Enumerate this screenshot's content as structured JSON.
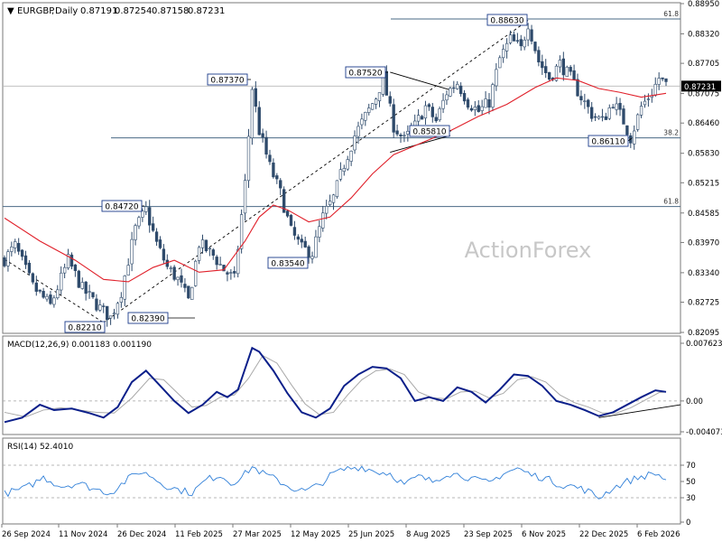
{
  "header": {
    "symbol": "EURGBP",
    "timeframe": "Daily",
    "ohlc": [
      "0.87191",
      "0.87254",
      "0.87158",
      "0.87231"
    ],
    "last_price_label": "0.87231"
  },
  "watermark": "ActionForex",
  "colors": {
    "candle": "#2e4a6b",
    "ma": "#e0202a",
    "macd": "#0b1f8a",
    "macd_signal": "#a8a8a8",
    "rsi": "#2f7fd8",
    "fib_line": "#4a6a85",
    "label_border": "#1a3a8a",
    "price_tag_bg": "#000000"
  },
  "x_axis_labels": [
    "26 Sep 2024",
    "11 Nov 2024",
    "26 Dec 2024",
    "11 Feb 2025",
    "27 Mar 2025",
    "12 May 2025",
    "25 Jun 2025",
    "8 Aug 2025",
    "23 Sep 2025",
    "6 Nov 2025",
    "22 Dec 2025",
    "6 Feb 2026"
  ],
  "chart_data": [
    {
      "type": "candlestick",
      "title": "EURGBP,Daily",
      "ylim": [
        0.82095,
        0.8895
      ],
      "y_ticks": [
        "0.88950",
        "0.88320",
        "0.87705",
        "0.87075",
        "0.86460",
        "0.85830",
        "0.85215",
        "0.84585",
        "0.83970",
        "0.83340",
        "0.82725",
        "0.82095"
      ],
      "fib_levels": [
        {
          "label": "61.8",
          "value": 0.8863
        },
        {
          "label": "38.2",
          "value": 0.8615
        },
        {
          "label": "61.8",
          "value": 0.8472
        }
      ],
      "reference_line": 0.8723,
      "price_labels": [
        "0.88630",
        "0.87370",
        "0.87520",
        "0.84720",
        "0.86110",
        "0.85810",
        "0.83540",
        "0.82210",
        "0.82390"
      ],
      "anchor_points": [
        {
          "x": 0,
          "y": 0.8362
        },
        {
          "x": 3,
          "y": 0.839
        },
        {
          "x": 8,
          "y": 0.8305
        },
        {
          "x": 13,
          "y": 0.8265
        },
        {
          "x": 18,
          "y": 0.836
        },
        {
          "x": 22,
          "y": 0.83
        },
        {
          "x": 27,
          "y": 0.826
        },
        {
          "x": 30,
          "y": 0.824
        },
        {
          "x": 33,
          "y": 0.8295
        },
        {
          "x": 37,
          "y": 0.8425
        },
        {
          "x": 40,
          "y": 0.8465
        },
        {
          "x": 43,
          "y": 0.8395
        },
        {
          "x": 46,
          "y": 0.8345
        },
        {
          "x": 49,
          "y": 0.832
        },
        {
          "x": 52,
          "y": 0.8275
        },
        {
          "x": 55,
          "y": 0.8395
        },
        {
          "x": 59,
          "y": 0.837
        },
        {
          "x": 62,
          "y": 0.834
        },
        {
          "x": 65,
          "y": 0.832
        },
        {
          "x": 68,
          "y": 0.852
        },
        {
          "x": 70,
          "y": 0.872
        },
        {
          "x": 72,
          "y": 0.863
        },
        {
          "x": 75,
          "y": 0.8555
        },
        {
          "x": 78,
          "y": 0.85
        },
        {
          "x": 81,
          "y": 0.842
        },
        {
          "x": 84,
          "y": 0.8385
        },
        {
          "x": 87,
          "y": 0.8375
        },
        {
          "x": 90,
          "y": 0.845
        },
        {
          "x": 93,
          "y": 0.849
        },
        {
          "x": 96,
          "y": 0.856
        },
        {
          "x": 99,
          "y": 0.862
        },
        {
          "x": 102,
          "y": 0.866
        },
        {
          "x": 105,
          "y": 0.87
        },
        {
          "x": 107,
          "y": 0.874
        },
        {
          "x": 110,
          "y": 0.864
        },
        {
          "x": 113,
          "y": 0.861
        },
        {
          "x": 116,
          "y": 0.864
        },
        {
          "x": 119,
          "y": 0.868
        },
        {
          "x": 122,
          "y": 0.865
        },
        {
          "x": 125,
          "y": 0.871
        },
        {
          "x": 128,
          "y": 0.873
        },
        {
          "x": 131,
          "y": 0.869
        },
        {
          "x": 134,
          "y": 0.867
        },
        {
          "x": 137,
          "y": 0.869
        },
        {
          "x": 140,
          "y": 0.878
        },
        {
          "x": 143,
          "y": 0.882
        },
        {
          "x": 146,
          "y": 0.88
        },
        {
          "x": 148,
          "y": 0.8855
        },
        {
          "x": 151,
          "y": 0.8775
        },
        {
          "x": 154,
          "y": 0.874
        },
        {
          "x": 157,
          "y": 0.877
        },
        {
          "x": 160,
          "y": 0.874
        },
        {
          "x": 163,
          "y": 0.87
        },
        {
          "x": 166,
          "y": 0.8665
        },
        {
          "x": 169,
          "y": 0.865
        },
        {
          "x": 172,
          "y": 0.869
        },
        {
          "x": 175,
          "y": 0.865
        },
        {
          "x": 177,
          "y": 0.8615
        },
        {
          "x": 180,
          "y": 0.868
        },
        {
          "x": 183,
          "y": 0.871
        },
        {
          "x": 185,
          "y": 0.874
        },
        {
          "x": 187,
          "y": 0.8725
        }
      ],
      "moving_average": [
        {
          "x": 0,
          "y": 0.8448
        },
        {
          "x": 10,
          "y": 0.84
        },
        {
          "x": 20,
          "y": 0.836
        },
        {
          "x": 28,
          "y": 0.832
        },
        {
          "x": 35,
          "y": 0.8315
        },
        {
          "x": 42,
          "y": 0.8345
        },
        {
          "x": 48,
          "y": 0.836
        },
        {
          "x": 55,
          "y": 0.8335
        },
        {
          "x": 62,
          "y": 0.834
        },
        {
          "x": 68,
          "y": 0.84
        },
        {
          "x": 72,
          "y": 0.845
        },
        {
          "x": 76,
          "y": 0.8475
        },
        {
          "x": 80,
          "y": 0.8465
        },
        {
          "x": 86,
          "y": 0.844
        },
        {
          "x": 92,
          "y": 0.845
        },
        {
          "x": 98,
          "y": 0.849
        },
        {
          "x": 104,
          "y": 0.854
        },
        {
          "x": 110,
          "y": 0.858
        },
        {
          "x": 118,
          "y": 0.8605
        },
        {
          "x": 126,
          "y": 0.863
        },
        {
          "x": 134,
          "y": 0.866
        },
        {
          "x": 142,
          "y": 0.8685
        },
        {
          "x": 150,
          "y": 0.872
        },
        {
          "x": 156,
          "y": 0.874
        },
        {
          "x": 162,
          "y": 0.8735
        },
        {
          "x": 168,
          "y": 0.8718
        },
        {
          "x": 174,
          "y": 0.871
        },
        {
          "x": 180,
          "y": 0.87
        },
        {
          "x": 187,
          "y": 0.8708
        }
      ]
    },
    {
      "type": "line",
      "title": "MACD(12,26,9) 0.001183 0.001190",
      "ylim": [
        -0.004073,
        0.007623
      ],
      "y_ticks": [
        "0.007623",
        "0.00",
        "-0.004073"
      ],
      "macd": [
        {
          "x": 0,
          "y": -0.0028
        },
        {
          "x": 5,
          "y": -0.0022
        },
        {
          "x": 10,
          "y": -0.0005
        },
        {
          "x": 14,
          "y": -0.0012
        },
        {
          "x": 19,
          "y": -0.001
        },
        {
          "x": 24,
          "y": -0.0016
        },
        {
          "x": 28,
          "y": -0.0022
        },
        {
          "x": 32,
          "y": -0.0008
        },
        {
          "x": 36,
          "y": 0.0025
        },
        {
          "x": 40,
          "y": 0.004
        },
        {
          "x": 44,
          "y": 0.002
        },
        {
          "x": 48,
          "y": 0.0
        },
        {
          "x": 52,
          "y": -0.0016
        },
        {
          "x": 56,
          "y": -0.0005
        },
        {
          "x": 60,
          "y": 0.0012
        },
        {
          "x": 63,
          "y": 0.0005
        },
        {
          "x": 66,
          "y": 0.0015
        },
        {
          "x": 70,
          "y": 0.007
        },
        {
          "x": 72,
          "y": 0.0065
        },
        {
          "x": 76,
          "y": 0.004
        },
        {
          "x": 80,
          "y": 0.001
        },
        {
          "x": 84,
          "y": -0.0015
        },
        {
          "x": 88,
          "y": -0.0022
        },
        {
          "x": 92,
          "y": -0.001
        },
        {
          "x": 96,
          "y": 0.002
        },
        {
          "x": 100,
          "y": 0.0035
        },
        {
          "x": 104,
          "y": 0.0045
        },
        {
          "x": 108,
          "y": 0.0043
        },
        {
          "x": 112,
          "y": 0.003
        },
        {
          "x": 116,
          "y": 0.0
        },
        {
          "x": 120,
          "y": 0.0005
        },
        {
          "x": 124,
          "y": 0.0
        },
        {
          "x": 128,
          "y": 0.0018
        },
        {
          "x": 132,
          "y": 0.0012
        },
        {
          "x": 136,
          "y": -0.0002
        },
        {
          "x": 140,
          "y": 0.0015
        },
        {
          "x": 144,
          "y": 0.0035
        },
        {
          "x": 148,
          "y": 0.0033
        },
        {
          "x": 152,
          "y": 0.002
        },
        {
          "x": 156,
          "y": 0.0
        },
        {
          "x": 160,
          "y": -0.0005
        },
        {
          "x": 164,
          "y": -0.0012
        },
        {
          "x": 168,
          "y": -0.002
        },
        {
          "x": 172,
          "y": -0.0015
        },
        {
          "x": 176,
          "y": -0.0005
        },
        {
          "x": 180,
          "y": 0.0005
        },
        {
          "x": 184,
          "y": 0.0014
        },
        {
          "x": 187,
          "y": 0.0012
        }
      ],
      "signal": [
        {
          "x": 0,
          "y": -0.0015
        },
        {
          "x": 6,
          "y": -0.0021
        },
        {
          "x": 11,
          "y": -0.0012
        },
        {
          "x": 16,
          "y": -0.0009
        },
        {
          "x": 21,
          "y": -0.0012
        },
        {
          "x": 26,
          "y": -0.0015
        },
        {
          "x": 31,
          "y": -0.0016
        },
        {
          "x": 36,
          "y": 0.0004
        },
        {
          "x": 41,
          "y": 0.003
        },
        {
          "x": 45,
          "y": 0.0028
        },
        {
          "x": 49,
          "y": 0.001
        },
        {
          "x": 53,
          "y": -0.0008
        },
        {
          "x": 57,
          "y": -0.0006
        },
        {
          "x": 61,
          "y": 0.0005
        },
        {
          "x": 65,
          "y": 0.0008
        },
        {
          "x": 69,
          "y": 0.003
        },
        {
          "x": 73,
          "y": 0.006
        },
        {
          "x": 77,
          "y": 0.005
        },
        {
          "x": 81,
          "y": 0.0022
        },
        {
          "x": 85,
          "y": -0.0004
        },
        {
          "x": 89,
          "y": -0.0018
        },
        {
          "x": 93,
          "y": -0.0015
        },
        {
          "x": 97,
          "y": 0.0008
        },
        {
          "x": 101,
          "y": 0.0028
        },
        {
          "x": 105,
          "y": 0.004
        },
        {
          "x": 109,
          "y": 0.0042
        },
        {
          "x": 113,
          "y": 0.0035
        },
        {
          "x": 117,
          "y": 0.0012
        },
        {
          "x": 121,
          "y": 0.0004
        },
        {
          "x": 125,
          "y": 0.0003
        },
        {
          "x": 129,
          "y": 0.0012
        },
        {
          "x": 133,
          "y": 0.0013
        },
        {
          "x": 137,
          "y": 0.0004
        },
        {
          "x": 141,
          "y": 0.001
        },
        {
          "x": 145,
          "y": 0.0028
        },
        {
          "x": 149,
          "y": 0.0032
        },
        {
          "x": 153,
          "y": 0.0025
        },
        {
          "x": 157,
          "y": 0.0008
        },
        {
          "x": 161,
          "y": -0.0002
        },
        {
          "x": 165,
          "y": -0.0008
        },
        {
          "x": 169,
          "y": -0.0016
        },
        {
          "x": 173,
          "y": -0.0016
        },
        {
          "x": 177,
          "y": -0.0009
        },
        {
          "x": 181,
          "y": 0.0001
        },
        {
          "x": 185,
          "y": 0.0011
        },
        {
          "x": 187,
          "y": 0.0012
        }
      ]
    },
    {
      "type": "line",
      "title": "RSI(14) 52.4010",
      "ylim": [
        0,
        100
      ],
      "y_ticks": [
        "70",
        "50",
        "30",
        "0"
      ],
      "levels": [
        70,
        30
      ],
      "values": [
        {
          "x": 0,
          "y": 35
        },
        {
          "x": 6,
          "y": 42
        },
        {
          "x": 11,
          "y": 55
        },
        {
          "x": 16,
          "y": 44
        },
        {
          "x": 21,
          "y": 48
        },
        {
          "x": 26,
          "y": 40
        },
        {
          "x": 30,
          "y": 36
        },
        {
          "x": 34,
          "y": 50
        },
        {
          "x": 38,
          "y": 62
        },
        {
          "x": 41,
          "y": 58
        },
        {
          "x": 45,
          "y": 46
        },
        {
          "x": 49,
          "y": 40
        },
        {
          "x": 53,
          "y": 36
        },
        {
          "x": 57,
          "y": 52
        },
        {
          "x": 61,
          "y": 58
        },
        {
          "x": 64,
          "y": 48
        },
        {
          "x": 67,
          "y": 55
        },
        {
          "x": 70,
          "y": 68
        },
        {
          "x": 73,
          "y": 60
        },
        {
          "x": 77,
          "y": 52
        },
        {
          "x": 81,
          "y": 42
        },
        {
          "x": 85,
          "y": 38
        },
        {
          "x": 89,
          "y": 46
        },
        {
          "x": 93,
          "y": 60
        },
        {
          "x": 97,
          "y": 66
        },
        {
          "x": 101,
          "y": 68
        },
        {
          "x": 105,
          "y": 62
        },
        {
          "x": 109,
          "y": 60
        },
        {
          "x": 113,
          "y": 46
        },
        {
          "x": 117,
          "y": 56
        },
        {
          "x": 121,
          "y": 50
        },
        {
          "x": 125,
          "y": 60
        },
        {
          "x": 129,
          "y": 58
        },
        {
          "x": 133,
          "y": 52
        },
        {
          "x": 137,
          "y": 48
        },
        {
          "x": 141,
          "y": 60
        },
        {
          "x": 145,
          "y": 66
        },
        {
          "x": 149,
          "y": 58
        },
        {
          "x": 153,
          "y": 54
        },
        {
          "x": 157,
          "y": 46
        },
        {
          "x": 161,
          "y": 44
        },
        {
          "x": 165,
          "y": 38
        },
        {
          "x": 168,
          "y": 30
        },
        {
          "x": 172,
          "y": 42
        },
        {
          "x": 176,
          "y": 50
        },
        {
          "x": 180,
          "y": 56
        },
        {
          "x": 184,
          "y": 60
        },
        {
          "x": 187,
          "y": 52
        }
      ]
    }
  ]
}
